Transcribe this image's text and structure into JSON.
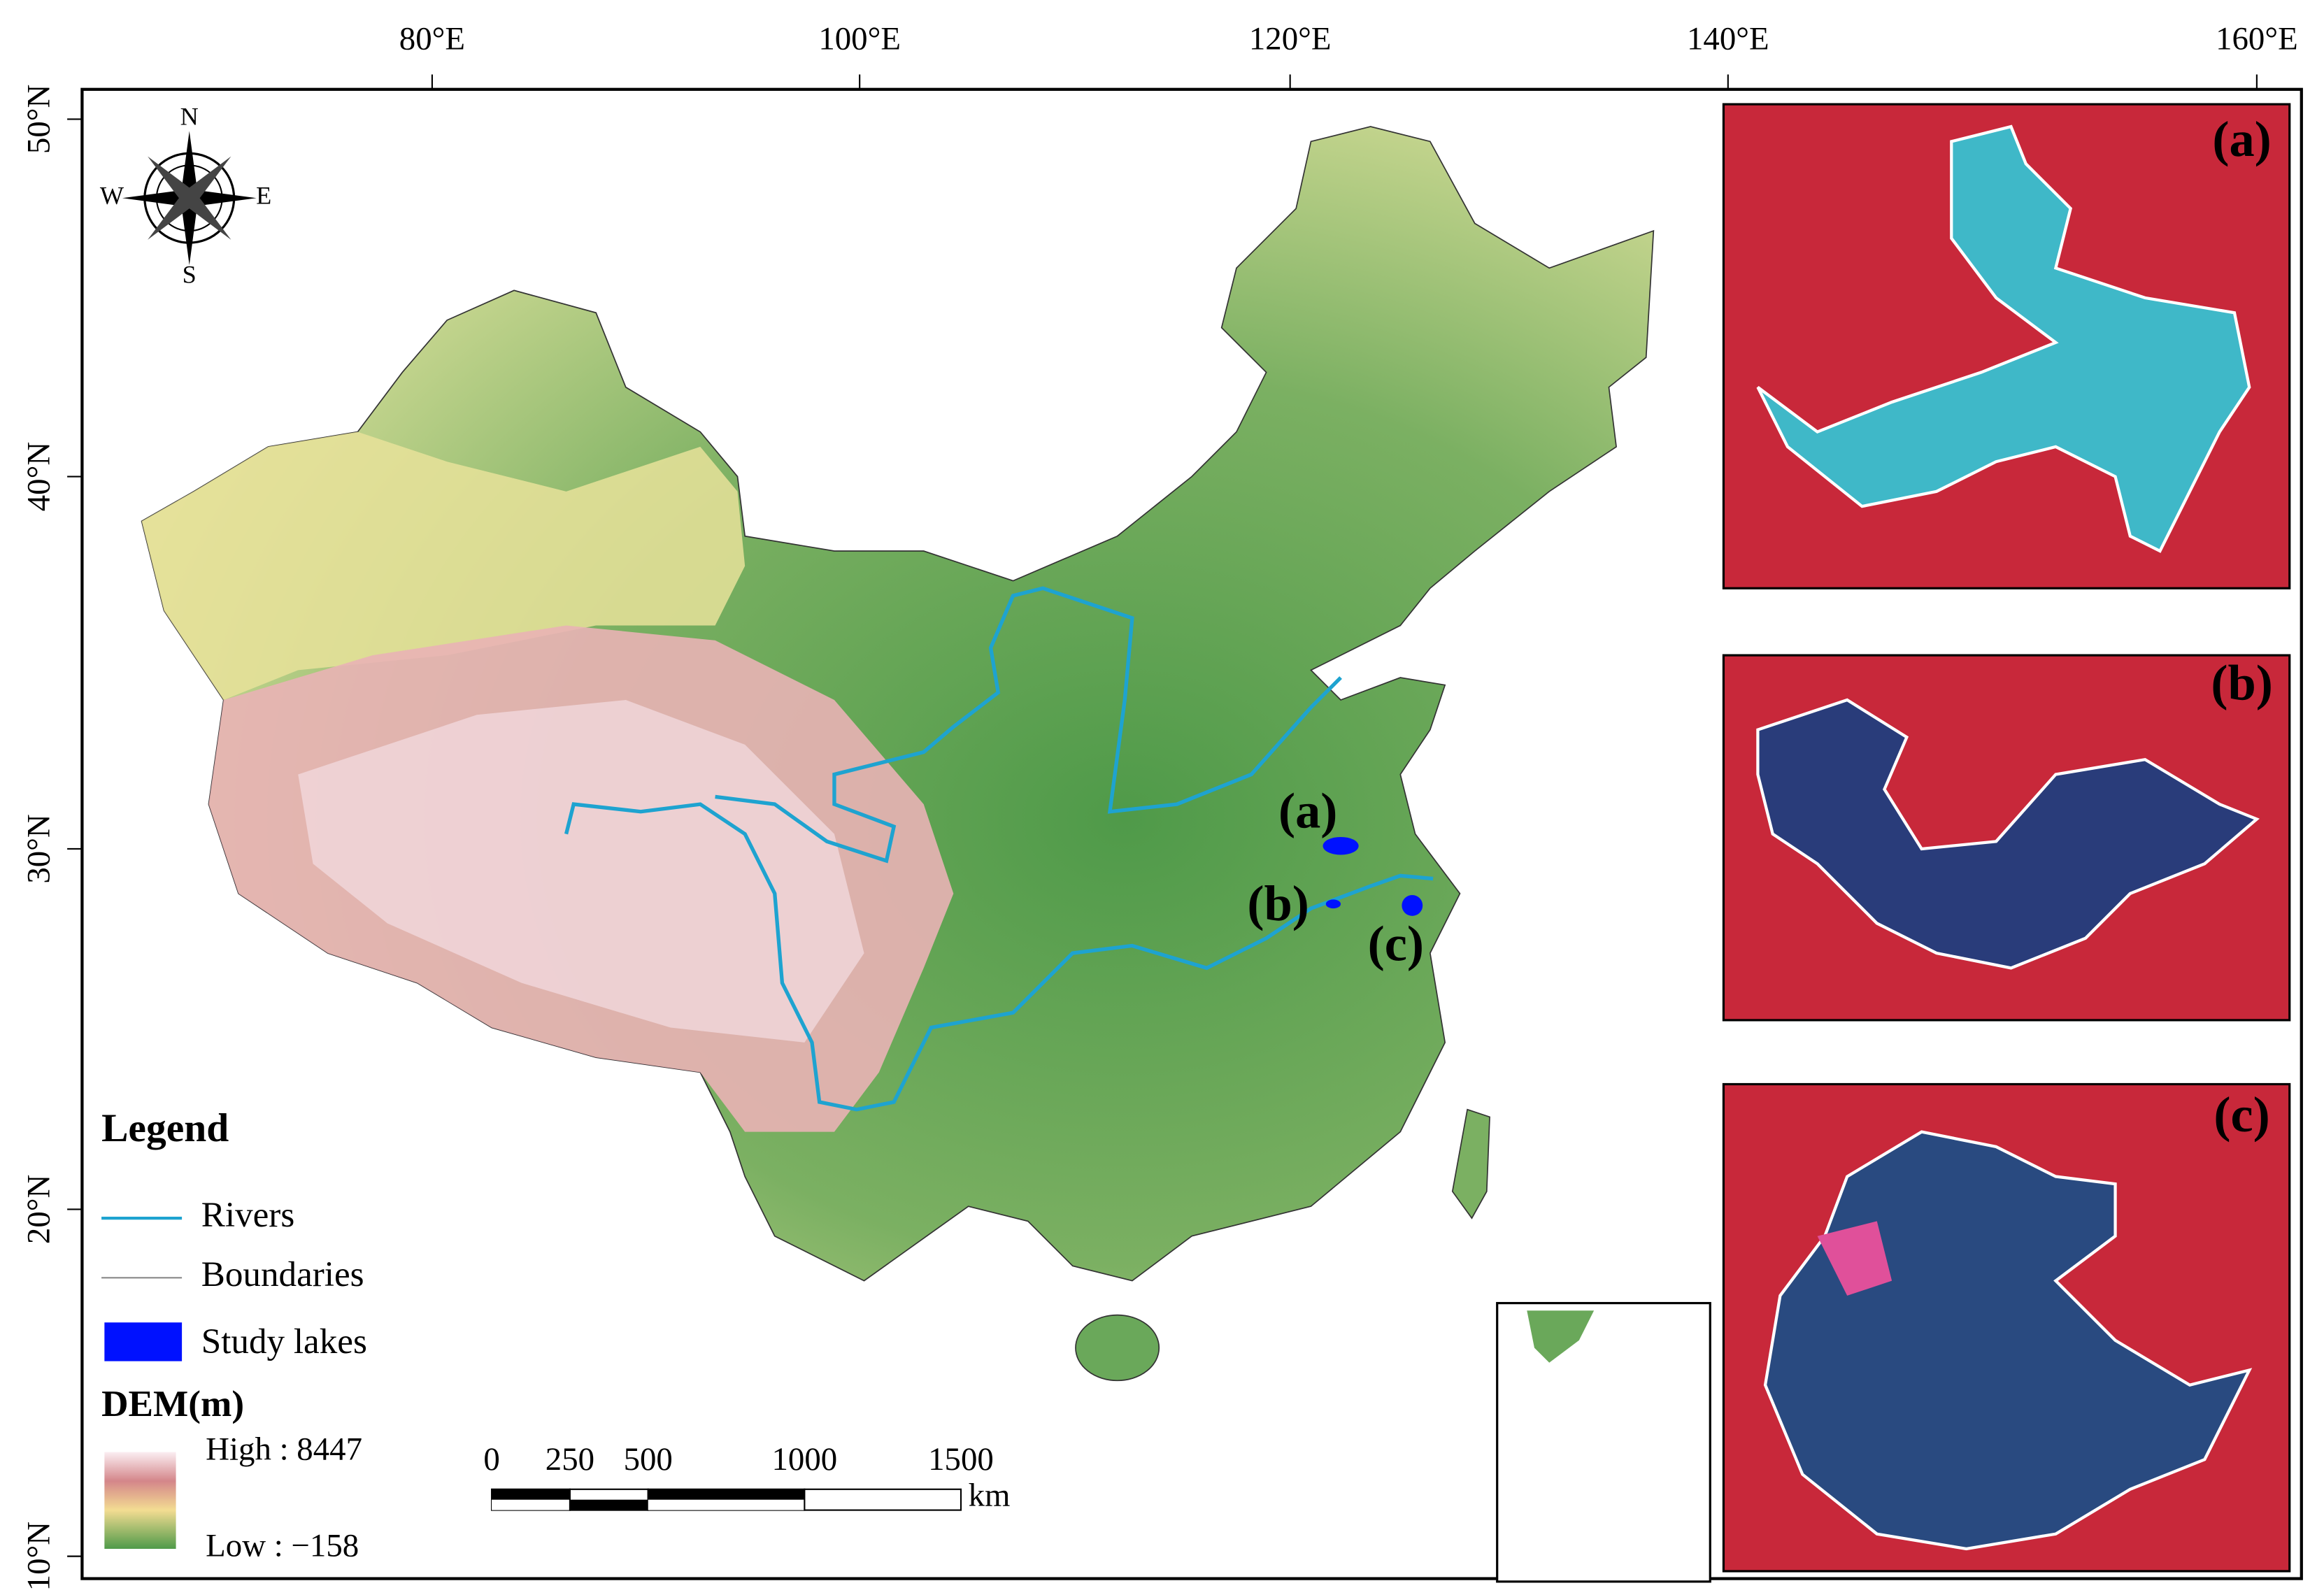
{
  "lon_labels": [
    "80°E",
    "100°E",
    "120°E",
    "140°E",
    "160°E"
  ],
  "lat_labels": [
    "50°N",
    "40°N",
    "30°N",
    "20°N",
    "10°N"
  ],
  "compass": {
    "north": "N",
    "south": "S",
    "west": "W",
    "east": "E"
  },
  "map_labels": [
    "(a)",
    "(b)",
    "(c)"
  ],
  "insets": [
    {
      "label": "(a)"
    },
    {
      "label": "(b)"
    },
    {
      "label": "(c)"
    }
  ],
  "legend": {
    "title": "Legend",
    "items": [
      "Rivers",
      "Boundaries",
      "Study lakes"
    ],
    "dem_title": "DEM(m)",
    "dem_high": "High : 8447",
    "dem_low": "Low : −158"
  },
  "scale_bar": {
    "ticks": [
      0,
      250,
      500,
      1000,
      1500
    ],
    "unit": "km"
  }
}
